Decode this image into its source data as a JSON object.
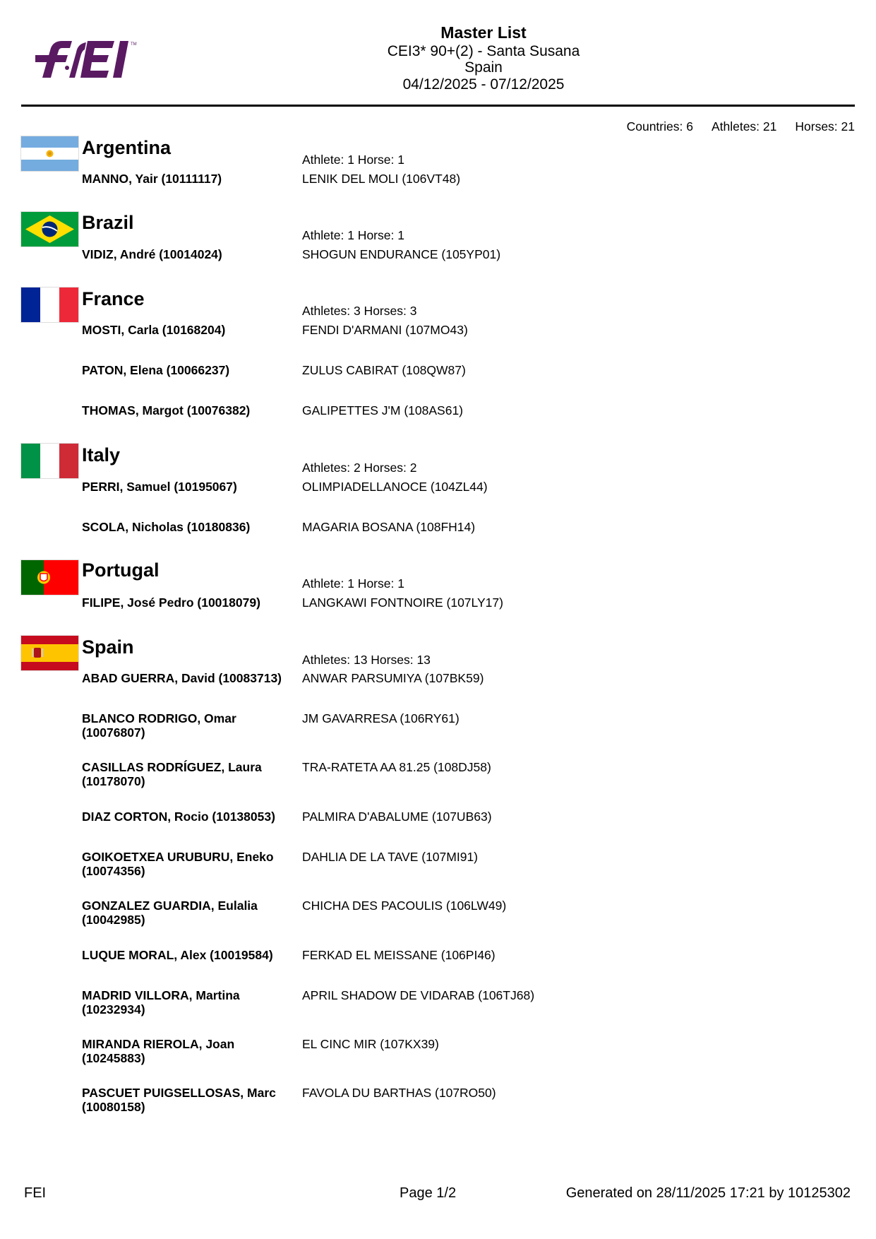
{
  "header": {
    "logo_text": "FEI",
    "title": "Master List",
    "event": "CEI3* 90+(2) - Santa Susana",
    "country": "Spain",
    "dates": "04/12/2025 - 07/12/2025"
  },
  "summary": {
    "countries": "Countries: 6",
    "athletes": "Athletes: 21",
    "horses": "Horses: 21"
  },
  "countries": [
    {
      "name": "Argentina",
      "flag": "flag-argentina-icon",
      "count": "Athlete: 1 Horse: 1",
      "entries": [
        {
          "athlete": "MANNO, Yair (10111117)",
          "horse": "LENIK DEL MOLI (106VT48)"
        }
      ]
    },
    {
      "name": "Brazil",
      "flag": "flag-brazil-icon",
      "count": "Athlete: 1 Horse: 1",
      "entries": [
        {
          "athlete": "VIDIZ, André (10014024)",
          "horse": "SHOGUN ENDURANCE (105YP01)"
        }
      ]
    },
    {
      "name": "France",
      "flag": "flag-france-icon",
      "count": "Athletes: 3 Horses: 3",
      "entries": [
        {
          "athlete": "MOSTI, Carla (10168204)",
          "horse": "FENDI D'ARMANI (107MO43)"
        },
        {
          "athlete": "PATON, Elena (10066237)",
          "horse": "ZULUS CABIRAT (108QW87)"
        },
        {
          "athlete": "THOMAS, Margot (10076382)",
          "horse": "GALIPETTES J'M (108AS61)"
        }
      ]
    },
    {
      "name": "Italy",
      "flag": "flag-italy-icon",
      "count": "Athletes: 2 Horses: 2",
      "entries": [
        {
          "athlete": "PERRI, Samuel (10195067)",
          "horse": "OLIMPIADELLANOCE (104ZL44)"
        },
        {
          "athlete": "SCOLA, Nicholas (10180836)",
          "horse": "MAGARIA BOSANA (108FH14)"
        }
      ]
    },
    {
      "name": "Portugal",
      "flag": "flag-portugal-icon",
      "count": "Athlete: 1 Horse: 1",
      "entries": [
        {
          "athlete": "FILIPE, José Pedro (10018079)",
          "horse": "LANGKAWI FONTNOIRE (107LY17)"
        }
      ]
    },
    {
      "name": "Spain",
      "flag": "flag-spain-icon",
      "count": "Athletes: 13 Horses: 13",
      "entries": [
        {
          "athlete": "ABAD GUERRA, David (10083713)",
          "horse": "ANWAR PARSUMIYA (107BK59)"
        },
        {
          "athlete": "BLANCO RODRIGO, Omar (10076807)",
          "horse": "JM GAVARRESA (106RY61)"
        },
        {
          "athlete": "CASILLAS RODRÍGUEZ, Laura (10178070)",
          "horse": "TRA-RATETA AA 81.25 (108DJ58)"
        },
        {
          "athlete": "DIAZ CORTON, Rocio (10138053)",
          "horse": "PALMIRA D'ABALUME (107UB63)"
        },
        {
          "athlete": "GOIKOETXEA URUBURU, Eneko (10074356)",
          "horse": "DAHLIA DE LA TAVE (107MI91)"
        },
        {
          "athlete": "GONZALEZ GUARDIA, Eulalia (10042985)",
          "horse": "CHICHA DES PACOULIS (106LW49)"
        },
        {
          "athlete": "LUQUE MORAL, Alex (10019584)",
          "horse": "FERKAD EL MEISSANE (106PI46)"
        },
        {
          "athlete": "MADRID VILLORA, Martina (10232934)",
          "horse": "APRIL SHADOW DE VIDARAB (106TJ68)"
        },
        {
          "athlete": "MIRANDA RIEROLA, Joan (10245883)",
          "horse": "EL CINC MIR (107KX39)"
        },
        {
          "athlete": "PASCUET PUIGSELLOSAS, Marc (10080158)",
          "horse": "FAVOLA DU BARTHAS (107RO50)"
        }
      ]
    }
  ],
  "footer": {
    "left": "FEI",
    "page": "Page 1/2",
    "generated": "Generated on 28/11/2025 17:21 by 10125302"
  }
}
